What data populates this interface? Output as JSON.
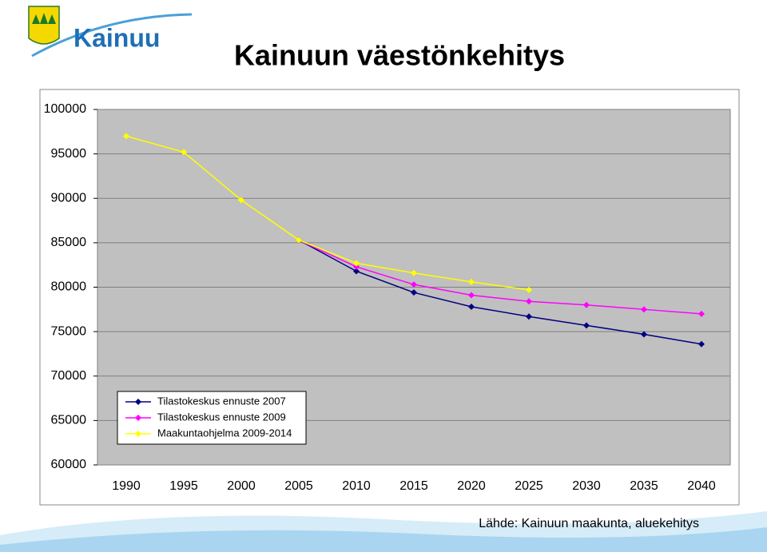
{
  "logo": {
    "text": "Kainuu"
  },
  "chart_data": {
    "type": "line",
    "title": "Kainuun väestönkehitys",
    "source": "Lähde: Kainuun maakunta, aluekehitys",
    "categories": [
      "1990",
      "1995",
      "2000",
      "2005",
      "2010",
      "2015",
      "2020",
      "2025",
      "2030",
      "2035",
      "2040"
    ],
    "series": [
      {
        "name": "Tilastokeskus ennuste 2007",
        "color": "#000080",
        "values": [
          null,
          null,
          null,
          85300,
          81800,
          79400,
          77800,
          76700,
          75700,
          74700,
          73600
        ]
      },
      {
        "name": "Tilastokeskus ennuste 2009",
        "color": "#ff00ff",
        "values": [
          null,
          null,
          null,
          85300,
          82300,
          80300,
          79100,
          78400,
          78000,
          77500,
          77000
        ]
      },
      {
        "name": "Maakuntaohjelma 2009-2014",
        "color": "#ffff00",
        "values": [
          97000,
          95200,
          89800,
          85300,
          82700,
          81600,
          80600,
          79700,
          null,
          null,
          null
        ]
      }
    ],
    "ylim": [
      60000,
      100000
    ],
    "yticks": [
      60000,
      65000,
      70000,
      75000,
      80000,
      85000,
      90000,
      95000,
      100000
    ],
    "grid": true,
    "legend": "lower left",
    "plot_background": "#c0c0c0"
  }
}
